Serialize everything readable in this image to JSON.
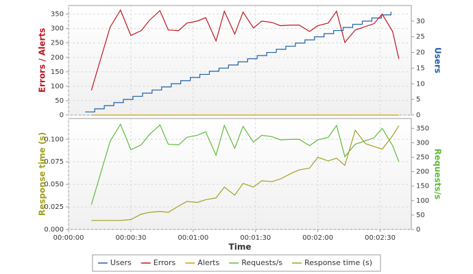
{
  "chart_data": [
    {
      "type": "line",
      "ylabel": "Errors / Alerts",
      "y2label": "Users",
      "ylim": [
        0,
        380
      ],
      "yticks": [
        0,
        50,
        100,
        150,
        200,
        250,
        300,
        350
      ],
      "y2lim": [
        0,
        35
      ],
      "y2ticks": [
        0,
        5,
        10,
        15,
        20,
        25,
        30
      ],
      "xlim": [
        0,
        165
      ],
      "grid": true,
      "x": [
        11,
        20,
        25,
        30,
        35,
        39,
        44,
        48,
        53,
        57,
        62,
        66,
        71,
        75,
        80,
        84,
        89,
        93,
        98,
        102,
        107,
        111,
        116,
        120,
        125,
        129,
        133,
        138,
        143,
        147,
        151,
        156,
        159
      ],
      "series": [
        {
          "name": "Users",
          "color": "#1f5fa6",
          "axis": "y2",
          "step": true,
          "x": [
            8,
            12.6,
            17.2,
            21.8,
            26.4,
            31,
            35.6,
            40.2,
            44.8,
            49.4,
            54,
            58.6,
            63.2,
            67.8,
            72.4,
            77,
            81.6,
            86.2,
            90.8,
            95.4,
            100,
            104.6,
            109.2,
            113.8,
            118.4,
            123,
            127.6,
            132.2,
            136.8,
            141.4,
            146,
            150.6,
            155.2
          ],
          "values": [
            1,
            2,
            3,
            4,
            5,
            6,
            7,
            8,
            9,
            10,
            11,
            12,
            13,
            14,
            15,
            16,
            17,
            18,
            19,
            20,
            21,
            22,
            23,
            24,
            25,
            26,
            27,
            28,
            29,
            30,
            31,
            32,
            33
          ]
        },
        {
          "name": "Errors",
          "color": "#c0141e",
          "values": [
            86,
            305,
            364,
            276,
            293,
            329,
            362,
            295,
            293,
            319,
            326,
            338,
            257,
            360,
            281,
            357,
            302,
            326,
            321,
            310,
            312,
            312,
            290,
            310,
            319,
            360,
            252,
            295,
            307,
            317,
            350,
            290,
            195
          ]
        },
        {
          "name": "Alerts",
          "color": "#c8a000",
          "values": [
            0,
            0,
            0,
            0,
            0,
            0,
            0,
            0,
            0,
            0,
            0,
            0,
            0,
            0,
            0,
            0,
            0,
            0,
            0,
            0,
            0,
            0,
            0,
            0,
            0,
            0,
            0,
            0,
            0,
            0,
            0,
            0,
            0
          ]
        }
      ]
    },
    {
      "type": "line",
      "ylabel": "Response time (s)",
      "y2label": "Requests/s",
      "xlabel": "Time",
      "ylim": [
        0,
        0.123
      ],
      "yticks": [
        {
          "value": 0,
          "label": "0.000"
        },
        0.025,
        {
          "value": 0.05,
          "label": "0.050"
        },
        0.075,
        {
          "value": 0.1,
          "label": "0.100"
        }
      ],
      "y2lim": [
        0,
        384
      ],
      "y2ticks": [
        0,
        50,
        100,
        150,
        200,
        250,
        300,
        350
      ],
      "xlim": [
        0,
        165
      ],
      "xticks": [
        {
          "value": 0,
          "label": "00:00:00"
        },
        {
          "value": 30,
          "label": "00:00:30"
        },
        {
          "value": 60,
          "label": "00:01:00"
        },
        {
          "value": 90,
          "label": "00:01:30"
        },
        {
          "value": 120,
          "label": "00:02:00"
        },
        {
          "value": 150,
          "label": "00:02:30"
        }
      ],
      "grid": true,
      "x": [
        11,
        20,
        25,
        30,
        35,
        39,
        44,
        48,
        53,
        57,
        62,
        66,
        71,
        75,
        80,
        84,
        89,
        93,
        98,
        102,
        107,
        111,
        116,
        120,
        125,
        129,
        133,
        138,
        143,
        147,
        151,
        156,
        159
      ],
      "series": [
        {
          "name": "Requests/s",
          "color": "#5fba3a",
          "axis": "y2",
          "values": [
            86,
            305,
            364,
            276,
            293,
            329,
            362,
            295,
            293,
            319,
            326,
            338,
            257,
            360,
            281,
            357,
            302,
            326,
            321,
            310,
            312,
            312,
            290,
            310,
            319,
            360,
            252,
            295,
            307,
            317,
            350,
            290,
            235
          ]
        },
        {
          "name": "Response time (s)",
          "color": "#a0a020",
          "values": [
            0.01,
            0.01,
            0.01,
            0.011,
            0.017,
            0.019,
            0.02,
            0.019,
            0.026,
            0.031,
            0.03,
            0.033,
            0.035,
            0.047,
            0.038,
            0.051,
            0.047,
            0.054,
            0.053,
            0.056,
            0.062,
            0.066,
            0.068,
            0.08,
            0.076,
            0.079,
            0.071,
            0.11,
            0.095,
            0.092,
            0.089,
            0.104,
            0.115
          ]
        }
      ]
    }
  ]
}
